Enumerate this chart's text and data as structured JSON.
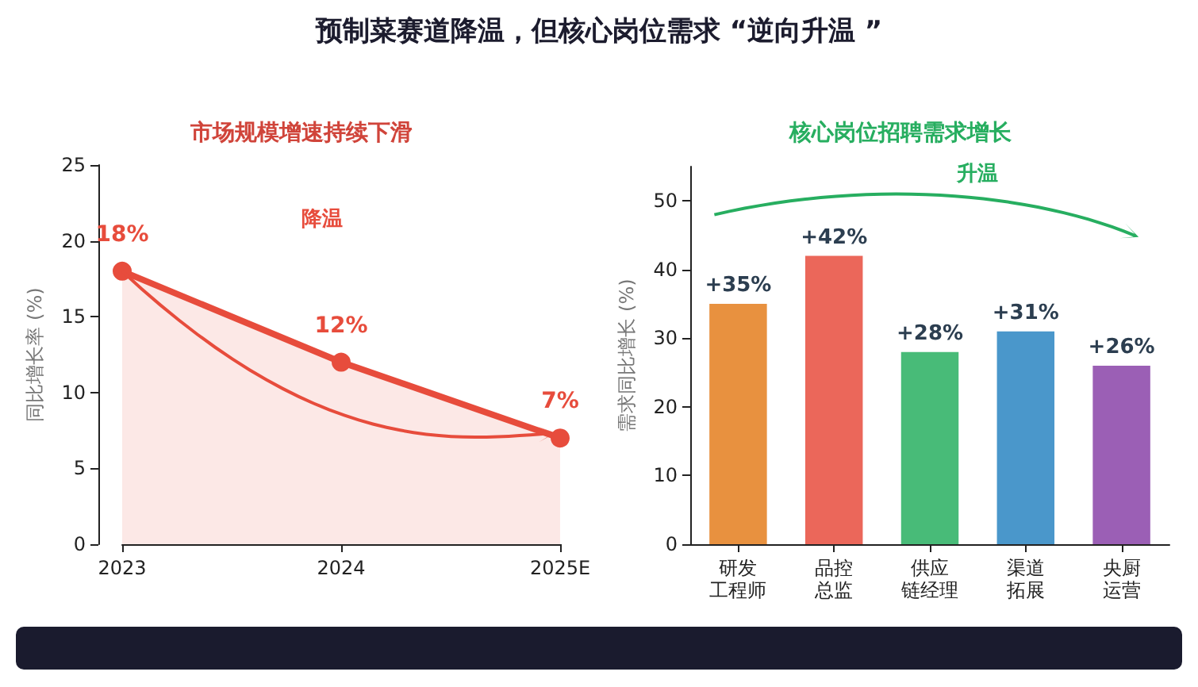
{
  "chart_data": [
    {
      "type": "area",
      "title": "市场规模增速持续下滑",
      "ylabel": "同比增长率 (%)",
      "annotations": [
        "预制菜赛道降温，但核心岗位需求 “逆向升温 ”",
        "降温"
      ],
      "categories": [
        "2023",
        "2024",
        "2025E"
      ],
      "series": [
        {
          "color": "#e74c3c",
          "values": [
            18,
            12,
            7
          ],
          "value_labels": [
            "18%",
            "12%",
            "7%"
          ]
        }
      ],
      "ylim": [
        0,
        25
      ],
      "yticks": [
        0,
        5,
        10,
        15,
        20,
        25
      ],
      "marker": "circle"
    },
    {
      "type": "bar",
      "title": "核心岗位招聘需求增长",
      "ylabel": "需求同比增长 (%)",
      "annotations": [
        "升温"
      ],
      "categories": [
        "研发工程师",
        "品控总监",
        "供应链经理",
        "渠道拓展",
        "央厨运营"
      ],
      "values": [
        35,
        42,
        28,
        31,
        26
      ],
      "colors": [
        "#e8913f",
        "#eb675a",
        "#48bb78",
        "#4a97cb",
        "#9b5fb5"
      ],
      "value_labels": [
        "+35%",
        "+42%",
        "+28%",
        "+31%",
        "+26%"
      ],
      "ylim": [
        0,
        55
      ],
      "yticks": [
        0,
        10,
        20,
        30,
        40,
        50
      ]
    }
  ]
}
